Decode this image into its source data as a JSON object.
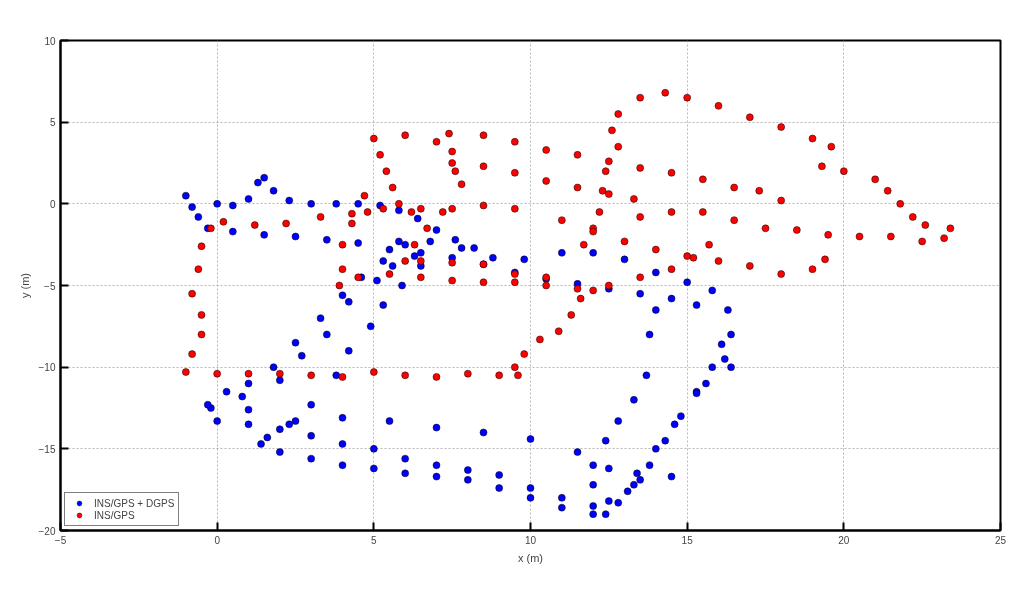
{
  "chart_data": {
    "type": "scatter",
    "xlabel": "x (m)",
    "ylabel": "y (m)",
    "xlim": [
      -5,
      25
    ],
    "ylim": [
      -20,
      10
    ],
    "xticks": [
      -5,
      0,
      5,
      10,
      15,
      20,
      25
    ],
    "yticks": [
      -20,
      -15,
      -10,
      -5,
      0,
      5,
      10
    ],
    "grid": true,
    "legend": "bottom left",
    "marker": "circle",
    "series": [
      {
        "name": "INS/GPS + DGPS",
        "color": "#0000ff",
        "x": [
          -1.0,
          -0.8,
          -0.6,
          0,
          0.5,
          1,
          1.3,
          1.5,
          1.8,
          2.3,
          3,
          3.8,
          4.5,
          5.2,
          5.8,
          6.4,
          7,
          7.6,
          8.2,
          -0.3,
          0.5,
          1.5,
          2.5,
          3.5,
          4.5,
          5.5,
          6.5,
          7.5,
          8.5,
          9.5,
          10.5,
          11.5,
          12.5,
          13.5,
          14.5,
          15.3,
          5.8,
          6.8,
          7.8,
          8.8,
          9.8,
          11,
          12,
          13,
          14,
          15,
          15.8,
          16.3,
          16.4,
          16.2,
          16.4,
          15.6,
          16.1,
          15.8,
          15.3,
          14.8,
          14.3,
          13.8,
          13.3,
          12.8,
          12.4,
          15.3,
          14.6,
          14,
          13.4,
          13.1,
          14,
          13.8,
          13.7,
          13.3,
          12.8,
          12.4,
          12.0,
          12.0,
          12.5,
          1.4,
          2,
          3,
          4,
          5,
          6,
          7,
          8,
          9,
          10,
          11,
          12,
          0,
          1,
          2,
          3,
          4,
          5,
          6,
          7,
          8,
          9,
          10,
          11,
          12,
          -0.2,
          1,
          2.5,
          4,
          5.5,
          7,
          8.5,
          10,
          11.5,
          12.5,
          13.5,
          14.5,
          -0.3,
          0.3,
          1,
          1.8,
          2.5,
          3.3,
          4,
          4.6,
          5.3,
          6,
          0.8,
          2,
          2.7,
          3.5,
          4.2,
          5.1,
          5.6,
          6.3,
          1.6,
          2.3,
          3,
          3.8,
          4.2,
          4.9,
          5.3,
          5.9,
          6.5
        ],
        "values": [
          0.5,
          -0.2,
          -0.8,
          0,
          -0.1,
          0.3,
          1.3,
          1.6,
          0.8,
          0.2,
          0,
          0,
          0,
          -0.1,
          -0.4,
          -0.9,
          -1.6,
          -2.2,
          -2.7,
          -1.5,
          -1.7,
          -1.9,
          -2.0,
          -2.2,
          -2.4,
          -2.8,
          -3.0,
          -3.3,
          -3.7,
          -4.2,
          -4.6,
          -4.9,
          -5.2,
          -5.5,
          -5.8,
          -6.2,
          -2.3,
          -2.3,
          -2.7,
          -3.3,
          -3.4,
          -3.0,
          -3.0,
          -3.4,
          -4.2,
          -4.8,
          -5.3,
          -6.5,
          -8,
          -9.5,
          -10,
          -11,
          -8.6,
          -10,
          -11.5,
          -13,
          -14.5,
          -16,
          -17.2,
          -18.3,
          -19,
          -11.6,
          -13.5,
          -15,
          -16.5,
          -17.6,
          -6.5,
          -8,
          -10.5,
          -12,
          -13.3,
          -14.5,
          -16.0,
          -17.2,
          -18.2,
          -14.7,
          -15.2,
          -15.6,
          -16.0,
          -16.2,
          -16.5,
          -16.7,
          -16.9,
          -17.4,
          -18,
          -18.6,
          -19,
          -13.3,
          -13.5,
          -13.8,
          -14.2,
          -14.7,
          -15,
          -15.6,
          -16,
          -16.3,
          -16.6,
          -17.4,
          -18,
          -18.5,
          -12.5,
          -12.6,
          -13.3,
          -13.1,
          -13.3,
          -13.7,
          -14.0,
          -14.4,
          -15.2,
          -16.2,
          -16.9,
          -16.7,
          -12.3,
          -11.5,
          -11,
          -10,
          -8.5,
          -7,
          -5.6,
          -4.5,
          -3.5,
          -2.5,
          -11.8,
          -10.8,
          -9.3,
          -8,
          -6,
          -4.7,
          -3.8,
          -3.2,
          -14.3,
          -13.5,
          -12.3,
          -10.5,
          -9,
          -7.5,
          -6.2,
          -5,
          -3.8
        ]
      },
      {
        "name": "INS/GPS",
        "color": "#ff0000",
        "x": [
          -0.2,
          -0.5,
          -0.6,
          -0.8,
          -0.5,
          -0.5,
          -0.8,
          -1,
          0,
          1,
          2,
          3,
          4,
          5,
          6,
          7,
          8,
          9,
          9.6,
          0.2,
          1.2,
          2.2,
          3.3,
          4.3,
          5.3,
          6.5,
          7.5,
          8.5,
          9.5,
          4.7,
          4.8,
          4.3,
          4.0,
          4.0,
          3.9,
          5.0,
          5.2,
          5.4,
          5.6,
          5.8,
          6.2,
          6,
          7,
          7.4,
          7.5,
          7.6,
          7.8,
          7.2,
          6.7,
          6.3,
          6,
          8.5,
          9.5,
          10.5,
          11.5,
          12.5,
          13.5,
          14.5,
          15.5,
          16.5,
          17.3,
          18,
          7.5,
          8.5,
          9.5,
          10.5,
          11.5,
          12.5,
          13.3,
          12.4,
          12.3,
          12.2,
          12.0,
          11.7,
          12.8,
          12.6,
          12.8,
          13.5,
          14.3,
          15,
          16,
          17,
          18,
          19,
          19.6,
          19.3,
          20,
          21,
          21.4,
          21.8,
          22.2,
          22.6,
          13.5,
          14.5,
          15.5,
          16.5,
          17.5,
          18.5,
          19.5,
          20.5,
          21.5,
          22.5,
          23.2,
          23.4,
          11,
          12,
          13,
          14,
          15,
          16,
          17,
          18,
          19,
          19.4,
          4.5,
          5.5,
          6.5,
          7.5,
          8.5,
          9.5,
          10.5,
          11.5,
          12.5,
          13.5,
          14.5,
          15.2,
          15.7,
          9.5,
          9.8,
          10.3,
          10.9,
          11.3,
          11.6,
          12,
          6.5,
          7.5,
          8.5,
          9.5,
          10.5
        ],
        "values": [
          -1.5,
          -2.6,
          -4,
          -5.5,
          -6.8,
          -8,
          -9.2,
          -10.3,
          -10.4,
          -10.4,
          -10.4,
          -10.5,
          -10.6,
          -10.3,
          -10.5,
          -10.6,
          -10.4,
          -10.5,
          -10.5,
          -1.1,
          -1.3,
          -1.2,
          -0.8,
          -0.6,
          -0.3,
          -0.3,
          -0.3,
          -0.1,
          -0.3,
          0.5,
          -0.5,
          -1.2,
          -2.5,
          -4,
          -5,
          4.0,
          3.0,
          2.0,
          1.0,
          0,
          -0.5,
          4.2,
          3.8,
          4.3,
          3.2,
          2.0,
          1.2,
          -0.5,
          -1.5,
          -2.5,
          -3.5,
          4.2,
          3.8,
          3.3,
          3.0,
          2.6,
          2.2,
          1.9,
          1.5,
          1.0,
          0.8,
          0.2,
          2.5,
          2.3,
          1.9,
          1.4,
          1.0,
          0.6,
          0.3,
          2.0,
          0.8,
          -0.5,
          -1.5,
          -2.5,
          3.5,
          4.5,
          5.5,
          6.5,
          6.8,
          6.5,
          6,
          5.3,
          4.7,
          4.0,
          3.5,
          2.3,
          2,
          1.5,
          0.8,
          0,
          -0.8,
          -1.3,
          -0.8,
          -0.5,
          -0.5,
          -1.0,
          -1.5,
          -1.6,
          -1.9,
          -2.0,
          -2.0,
          -2.3,
          -2.1,
          -1.5,
          -1.0,
          -1.7,
          -2.3,
          -2.8,
          -3.2,
          -3.5,
          -3.8,
          -4.3,
          -4.0,
          -3.4,
          -4.5,
          -4.3,
          -4.5,
          -4.7,
          -4.8,
          -4.8,
          -5.0,
          -5.2,
          -5.0,
          -4.5,
          -4.0,
          -3.3,
          -2.5,
          -10,
          -9.2,
          -8.3,
          -7.8,
          -6.8,
          -5.8,
          -5.3,
          -3.5,
          -3.6,
          -3.7,
          -4.3,
          -4.5
        ]
      }
    ]
  }
}
